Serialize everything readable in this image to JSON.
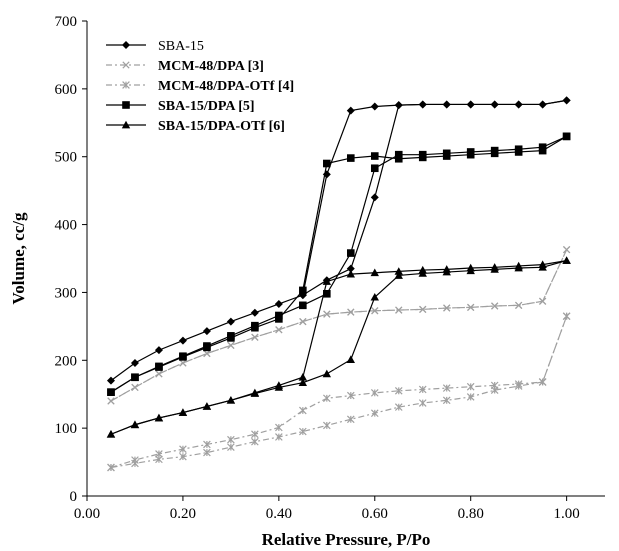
{
  "chart_data": {
    "type": "line",
    "xlabel": "Relative Pressure, P/Po",
    "ylabel": "Volume, cc/g",
    "xlim": [
      0,
      1.08
    ],
    "ylim": [
      0,
      700
    ],
    "x_ticks": [
      "0.00",
      "0.20",
      "0.40",
      "0.60",
      "0.80",
      "1.00"
    ],
    "x_tick_values": [
      0,
      0.2,
      0.4,
      0.6,
      0.8,
      1.0
    ],
    "y_ticks": [
      "0",
      "100",
      "200",
      "300",
      "400",
      "500",
      "600",
      "700"
    ],
    "y_tick_values": [
      0,
      100,
      200,
      300,
      400,
      500,
      600,
      700
    ],
    "grid": false,
    "legend_position": "top-left",
    "series": [
      {
        "name": "SBA-15",
        "label_main": "SBA-15",
        "label_ref": "",
        "color": "#000000",
        "dash": "",
        "marker": "diamond",
        "branches": [
          {
            "x": [
              0.05,
              0.1,
              0.15,
              0.2,
              0.25,
              0.3,
              0.35,
              0.4,
              0.45,
              0.5,
              0.55,
              0.6,
              0.65,
              0.7,
              0.75,
              0.8,
              0.85,
              0.9,
              0.95,
              1.0
            ],
            "y": [
              170,
              196,
              215,
              229,
              243,
              257,
              270,
              283,
              296,
              318,
              335,
              440,
              576,
              577,
              577,
              577,
              577,
              577,
              577,
              583
            ]
          },
          {
            "x": [
              1.0,
              0.95,
              0.9,
              0.85,
              0.8,
              0.75,
              0.7,
              0.65,
              0.6,
              0.55,
              0.5,
              0.45
            ],
            "y": [
              583,
              577,
              577,
              577,
              577,
              577,
              577,
              576,
              574,
              568,
              474,
              296
            ]
          }
        ]
      },
      {
        "name": "MCM-48/DPA [3]",
        "label_main": "MCM-48/DPA ",
        "label_ref": "[3]",
        "color": "#a0a0a0",
        "dash": "6,3,2,3",
        "marker": "x",
        "branches": [
          {
            "x": [
              0.05,
              0.1,
              0.15,
              0.2,
              0.25,
              0.3,
              0.35,
              0.4,
              0.45,
              0.5,
              0.55,
              0.6,
              0.65,
              0.7,
              0.75,
              0.8,
              0.85,
              0.9,
              0.95,
              1.0
            ],
            "y": [
              140,
              160,
              180,
              196,
              210,
              222,
              234,
              245,
              257,
              268,
              271,
              273,
              274,
              275,
              277,
              278,
              280,
              281,
              287,
              363
            ]
          },
          {
            "x": [
              1.0,
              0.95,
              0.9,
              0.85,
              0.8,
              0.75,
              0.7,
              0.65,
              0.6,
              0.55,
              0.5,
              0.45,
              0.4,
              0.35,
              0.3,
              0.25,
              0.2,
              0.15,
              0.1,
              0.05
            ],
            "y": [
              363,
              287,
              281,
              280,
              278,
              277,
              275,
              274,
              273,
              271,
              268,
              257,
              245,
              234,
              222,
              210,
              196,
              180,
              160,
              140
            ]
          }
        ]
      },
      {
        "name": "MCM-48/DPA-OTf [4]",
        "label_main": "MCM-48/DPA-OTf ",
        "label_ref": "[4]",
        "color": "#a0a0a0",
        "dash": "6,3,2,3",
        "marker": "asterisk",
        "branches": [
          {
            "x": [
              0.05,
              0.1,
              0.15,
              0.2,
              0.25,
              0.3,
              0.35,
              0.4,
              0.45,
              0.5,
              0.55,
              0.6,
              0.65,
              0.7,
              0.75,
              0.8,
              0.85,
              0.9,
              0.95,
              1.0
            ],
            "y": [
              42,
              53,
              62,
              69,
              76,
              83,
              91,
              101,
              126,
              144,
              148,
              152,
              155,
              157,
              159,
              161,
              163,
              165,
              168,
              265
            ]
          },
          {
            "x": [
              1.0,
              0.95,
              0.9,
              0.85,
              0.8,
              0.75,
              0.7,
              0.65,
              0.6,
              0.55,
              0.5,
              0.45,
              0.4,
              0.35,
              0.3,
              0.25,
              0.2,
              0.15,
              0.1,
              0.05
            ],
            "y": [
              265,
              168,
              162,
              156,
              146,
              141,
              137,
              131,
              122,
              113,
              104,
              95,
              87,
              80,
              72,
              64,
              58,
              54,
              48,
              42
            ]
          }
        ]
      },
      {
        "name": "SBA-15/DPA [5]",
        "label_main": "SBA-15/DPA ",
        "label_ref": "[5]",
        "color": "#000000",
        "dash": "",
        "marker": "square",
        "branches": [
          {
            "x": [
              0.05,
              0.1,
              0.15,
              0.2,
              0.25,
              0.3,
              0.35,
              0.4,
              0.45,
              0.5,
              0.55,
              0.6,
              0.65,
              0.7,
              0.75,
              0.8,
              0.85,
              0.9,
              0.95,
              1.0
            ],
            "y": [
              153,
              175,
              191,
              206,
              221,
              236,
              251,
              266,
              281,
              298,
              358,
              483,
              503,
              503,
              505,
              507,
              509,
              511,
              514,
              530
            ]
          },
          {
            "x": [
              1.0,
              0.95,
              0.9,
              0.85,
              0.8,
              0.75,
              0.7,
              0.65,
              0.6,
              0.55,
              0.5,
              0.45,
              0.4,
              0.35,
              0.3,
              0.25,
              0.2,
              0.15,
              0.1,
              0.05
            ],
            "y": [
              530,
              509,
              507,
              505,
              503,
              501,
              499,
              497,
              501,
              498,
              490,
              303,
              261,
              248,
              233,
              219,
              205,
              190,
              175,
              153
            ]
          }
        ]
      },
      {
        "name": "SBA-15/DPA-OTf [6]",
        "label_main": "SBA-15/DPA-OTf ",
        "label_ref": "[6]",
        "color": "#000000",
        "dash": "",
        "marker": "triangle",
        "branches": [
          {
            "x": [
              0.05,
              0.1,
              0.15,
              0.2,
              0.25,
              0.3,
              0.35,
              0.4,
              0.45,
              0.5,
              0.55,
              0.6,
              0.65,
              0.7,
              0.75,
              0.8,
              0.85,
              0.9,
              0.95,
              1.0
            ],
            "y": [
              91,
              105,
              115,
              123,
              132,
              141,
              151,
              160,
              167,
              180,
              201,
              293,
              325,
              328,
              330,
              332,
              334,
              336,
              337,
              347
            ]
          },
          {
            "x": [
              1.0,
              0.95,
              0.9,
              0.85,
              0.8,
              0.75,
              0.7,
              0.65,
              0.6,
              0.55,
              0.5,
              0.45,
              0.4,
              0.35,
              0.3,
              0.25,
              0.2,
              0.15,
              0.1,
              0.05
            ],
            "y": [
              347,
              341,
              339,
              337,
              336,
              334,
              333,
              331,
              329,
              327,
              316,
              175,
              163,
              152,
              141,
              132,
              123,
              115,
              105,
              91
            ]
          }
        ]
      }
    ]
  }
}
